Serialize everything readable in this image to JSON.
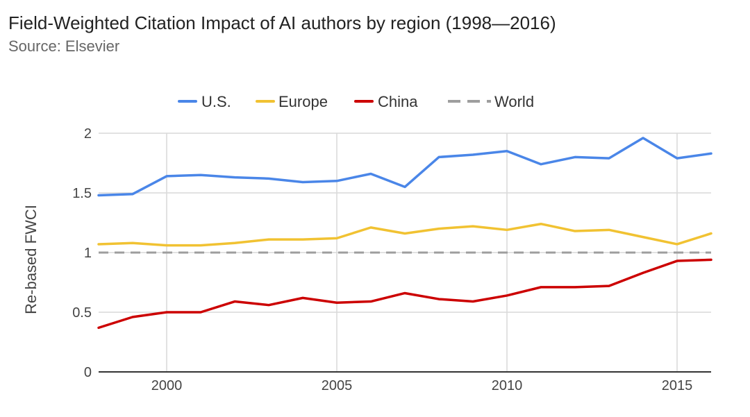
{
  "title": "Field-Weighted Citation Impact of AI authors by region (1998—2016)",
  "subtitle": "Source: Elsevier",
  "chart_data": {
    "type": "line",
    "x": [
      1998,
      1999,
      2000,
      2001,
      2002,
      2003,
      2004,
      2005,
      2006,
      2007,
      2008,
      2009,
      2010,
      2011,
      2012,
      2013,
      2014,
      2015,
      2016
    ],
    "series": [
      {
        "name": "U.S.",
        "color": "#4a86e8",
        "dashed": false,
        "values": [
          1.48,
          1.49,
          1.64,
          1.65,
          1.63,
          1.62,
          1.59,
          1.6,
          1.66,
          1.55,
          1.8,
          1.82,
          1.85,
          1.74,
          1.8,
          1.79,
          1.96,
          1.79,
          1.83
        ]
      },
      {
        "name": "Europe",
        "color": "#f1c232",
        "dashed": false,
        "values": [
          1.07,
          1.08,
          1.06,
          1.06,
          1.08,
          1.11,
          1.11,
          1.12,
          1.21,
          1.16,
          1.2,
          1.22,
          1.19,
          1.24,
          1.18,
          1.19,
          1.13,
          1.07,
          1.16
        ]
      },
      {
        "name": "China",
        "color": "#cc0000",
        "dashed": false,
        "values": [
          0.37,
          0.46,
          0.5,
          0.5,
          0.59,
          0.56,
          0.62,
          0.58,
          0.59,
          0.66,
          0.61,
          0.59,
          0.64,
          0.71,
          0.71,
          0.72,
          0.83,
          0.93,
          0.94
        ]
      },
      {
        "name": "World",
        "color": "#9e9e9e",
        "dashed": true,
        "values": [
          1,
          1,
          1,
          1,
          1,
          1,
          1,
          1,
          1,
          1,
          1,
          1,
          1,
          1,
          1,
          1,
          1,
          1,
          1
        ]
      }
    ],
    "ylabel": "Re-based FWCI",
    "xlabel": "",
    "ylim": [
      0,
      2
    ],
    "xlim": [
      1998,
      2016
    ],
    "yticks": [
      0,
      0.5,
      1,
      1.5,
      2
    ],
    "ytick_labels": [
      "0",
      "0.5",
      "1",
      "1.5",
      "2"
    ],
    "xticks": [
      2000,
      2005,
      2010,
      2015
    ],
    "xtick_labels": [
      "2000",
      "2005",
      "2010",
      "2015"
    ],
    "grid": true,
    "legend_position": "top"
  }
}
